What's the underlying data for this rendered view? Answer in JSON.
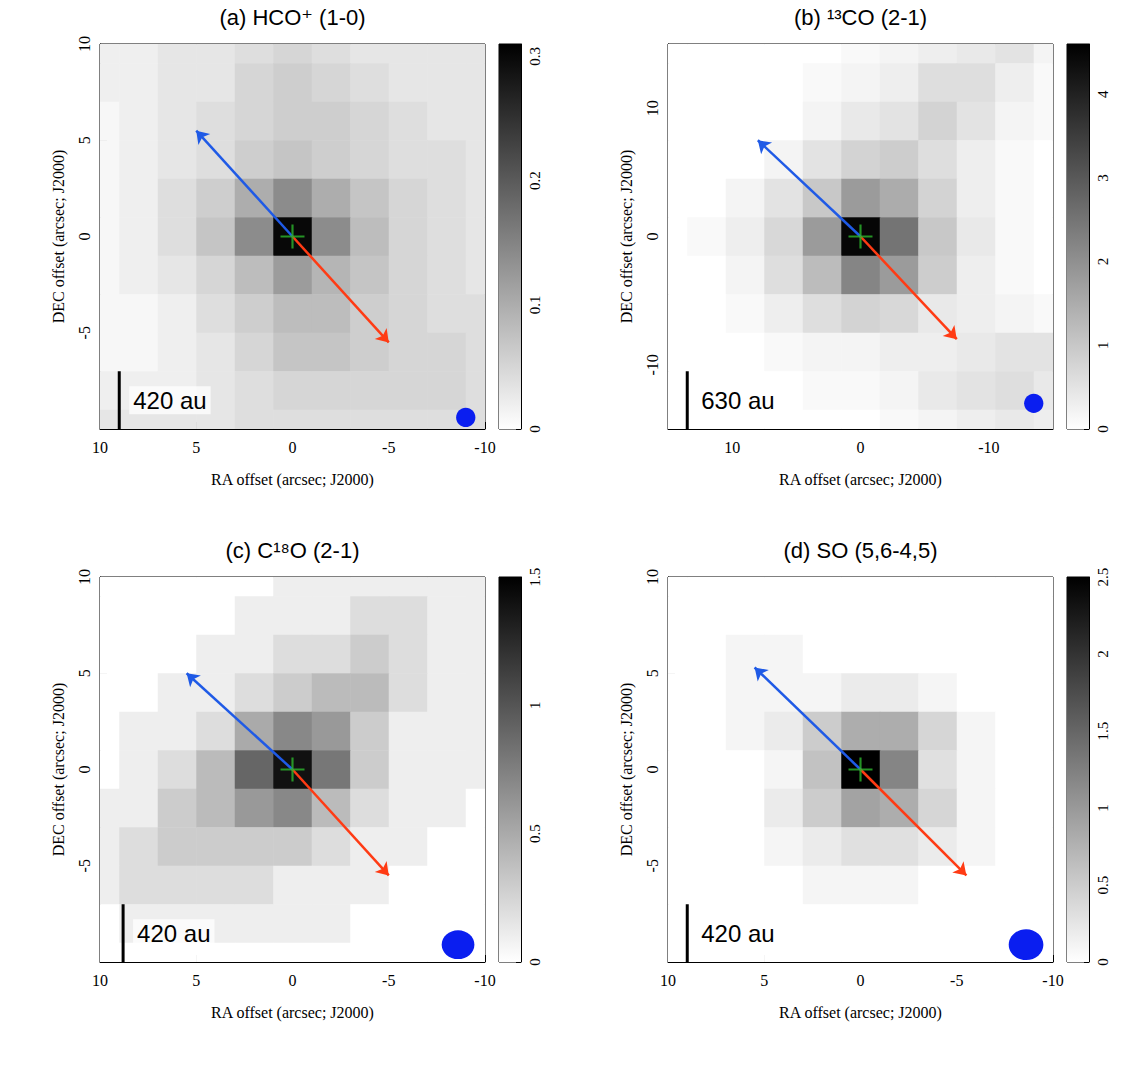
{
  "chart_data": [
    {
      "type": "heatmap",
      "title": "(a) HCO⁺ (1-0)",
      "xlabel": "RA offset (arcsec; J2000)",
      "ylabel": "DEC offset (arcsec; J2000)",
      "xlim": [
        10,
        -10
      ],
      "ylim": [
        -10,
        10
      ],
      "xticks": [
        10,
        5,
        0,
        -5,
        -10
      ],
      "yticks": [
        -5,
        0,
        5,
        10
      ],
      "x": [
        10,
        8,
        6,
        4,
        2,
        0,
        -2,
        -4,
        -6,
        -8,
        -10
      ],
      "y": [
        10,
        8,
        6,
        4,
        2,
        0,
        -2,
        -4,
        -6,
        -8,
        -10
      ],
      "cells": [
        [
          0.02,
          0.02,
          0.03,
          0.03,
          0.04,
          0.05,
          0.04,
          0.03,
          0.03,
          0.03,
          0.03
        ],
        [
          0.02,
          0.02,
          0.03,
          0.03,
          0.05,
          0.06,
          0.05,
          0.04,
          0.03,
          0.03,
          0.03
        ],
        [
          0.01,
          0.02,
          0.03,
          0.04,
          0.05,
          0.06,
          0.06,
          0.05,
          0.04,
          0.03,
          0.03
        ],
        [
          0.01,
          0.02,
          0.03,
          0.04,
          0.06,
          0.07,
          0.06,
          0.05,
          0.04,
          0.04,
          0.03
        ],
        [
          0.01,
          0.02,
          0.04,
          0.06,
          0.1,
          0.14,
          0.1,
          0.07,
          0.05,
          0.04,
          0.03
        ],
        [
          0.01,
          0.02,
          0.04,
          0.07,
          0.14,
          0.3,
          0.14,
          0.08,
          0.05,
          0.04,
          0.03
        ],
        [
          0.01,
          0.02,
          0.03,
          0.05,
          0.08,
          0.12,
          0.09,
          0.07,
          0.05,
          0.04,
          0.03
        ],
        [
          0.01,
          0.01,
          0.02,
          0.04,
          0.06,
          0.08,
          0.08,
          0.06,
          0.05,
          0.04,
          0.04
        ],
        [
          0.01,
          0.01,
          0.02,
          0.03,
          0.05,
          0.07,
          0.07,
          0.06,
          0.05,
          0.05,
          0.04
        ],
        [
          0.02,
          0.02,
          0.02,
          0.03,
          0.04,
          0.05,
          0.05,
          0.05,
          0.05,
          0.05,
          0.04
        ],
        [
          0.03,
          0.03,
          0.03,
          0.03,
          0.04,
          0.04,
          0.04,
          0.04,
          0.04,
          0.04,
          0.04
        ]
      ],
      "clim": [
        0,
        0.31
      ],
      "cticks": [
        0,
        0.1,
        0.2,
        0.3
      ],
      "arrows": [
        {
          "from": [
            0,
            0
          ],
          "to": [
            5,
            5.5
          ],
          "color": "#1f5ae6"
        },
        {
          "from": [
            0,
            0
          ],
          "to": [
            -5,
            -5.5
          ],
          "color": "#ff3b14"
        }
      ],
      "marker": "cross",
      "marker_position": [
        0,
        0
      ],
      "color": "#2db52d",
      "beam": {
        "center": [
          -9,
          -9.4
        ],
        "width": 1.0,
        "height": 1.0,
        "color": "#0a1ef0"
      },
      "scale_bar": {
        "label": "420 au",
        "length": 3,
        "anchor": [
          9,
          -10
        ]
      }
    },
    {
      "type": "heatmap",
      "title": "(b) ¹³CO (2-1)",
      "xlabel": "RA offset (arcsec; J2000)",
      "ylabel": "DEC offset (arcsec; J2000)",
      "xlim": [
        15,
        -15
      ],
      "ylim": [
        -15,
        15
      ],
      "xticks": [
        10,
        0,
        -10
      ],
      "yticks": [
        -10,
        0,
        10
      ],
      "x": [
        15,
        12,
        9,
        6,
        3,
        0,
        -3,
        -6,
        -9,
        -12,
        -15
      ],
      "y": [
        15,
        12,
        9,
        6,
        3,
        0,
        -3,
        -6,
        -9,
        -12,
        -15
      ],
      "cells": [
        [
          0,
          0,
          0,
          0,
          0,
          0.1,
          0.2,
          0.3,
          0.4,
          0.5,
          0.2
        ],
        [
          0,
          0,
          0,
          0,
          0.1,
          0.2,
          0.3,
          0.6,
          0.6,
          0.3,
          0.1
        ],
        [
          0,
          0,
          0,
          0,
          0.2,
          0.4,
          0.5,
          0.8,
          0.5,
          0.2,
          0.1
        ],
        [
          0,
          0,
          0,
          0.2,
          0.5,
          0.8,
          0.9,
          0.6,
          0.3,
          0.1,
          0
        ],
        [
          0,
          0,
          0.2,
          0.5,
          1.0,
          1.8,
          1.5,
          0.8,
          0.3,
          0.1,
          0
        ],
        [
          0,
          0.1,
          0.3,
          0.7,
          1.8,
          4.5,
          2.5,
          1.0,
          0.4,
          0.1,
          0
        ],
        [
          0,
          0,
          0.2,
          0.6,
          1.2,
          2.2,
          1.8,
          0.9,
          0.3,
          0.1,
          0
        ],
        [
          0,
          0,
          0.1,
          0.3,
          0.6,
          0.8,
          0.7,
          0.4,
          0.3,
          0.2,
          0.1
        ],
        [
          0,
          0,
          0,
          0.1,
          0.2,
          0.2,
          0.3,
          0.3,
          0.4,
          0.5,
          0.5
        ],
        [
          0,
          0,
          0,
          0,
          0.1,
          0.1,
          0.2,
          0.4,
          0.5,
          0.6,
          0.4
        ],
        [
          0,
          0,
          0,
          0,
          0,
          0,
          0.1,
          0.2,
          0.3,
          0.4,
          0.3
        ]
      ],
      "clim": [
        0,
        4.6
      ],
      "cticks": [
        0,
        1,
        2,
        3,
        4
      ],
      "arrows": [
        {
          "from": [
            0,
            0
          ],
          "to": [
            8,
            7.5
          ],
          "color": "#1f5ae6"
        },
        {
          "from": [
            0,
            0
          ],
          "to": [
            -7.5,
            -8
          ],
          "color": "#ff3b14"
        }
      ],
      "marker": "cross",
      "marker_position": [
        0,
        0
      ],
      "color": "#2db52d",
      "beam": {
        "center": [
          -13.5,
          -13
        ],
        "width": 1.5,
        "height": 1.5,
        "color": "#0a1ef0"
      },
      "scale_bar": {
        "label": "630 au",
        "length": 4.5,
        "anchor": [
          13.5,
          -15
        ]
      }
    },
    {
      "type": "heatmap",
      "title": "(c) C¹⁸O (2-1)",
      "xlabel": "RA offset (arcsec; J2000)",
      "ylabel": "DEC offset (arcsec; J2000)",
      "xlim": [
        10,
        -10
      ],
      "ylim": [
        -10,
        10
      ],
      "xticks": [
        10,
        5,
        0,
        -5,
        -10
      ],
      "yticks": [
        -5,
        0,
        5,
        10
      ],
      "x": [
        10,
        8,
        6,
        4,
        2,
        0,
        -2,
        -4,
        -6,
        -8,
        -10
      ],
      "y": [
        10,
        8,
        6,
        4,
        2,
        0,
        -2,
        -4,
        -6,
        -8,
        -10
      ],
      "cells": [
        [
          0,
          0,
          0,
          0,
          0,
          0.1,
          0.1,
          0.1,
          0.1,
          0.1,
          0.1
        ],
        [
          0,
          0,
          0,
          0,
          0.1,
          0.1,
          0.1,
          0.2,
          0.2,
          0.1,
          0.1
        ],
        [
          0,
          0,
          0,
          0.1,
          0.1,
          0.2,
          0.2,
          0.3,
          0.2,
          0.1,
          0.1
        ],
        [
          0,
          0,
          0.1,
          0.1,
          0.2,
          0.3,
          0.4,
          0.4,
          0.2,
          0.1,
          0.1
        ],
        [
          0,
          0.1,
          0.1,
          0.2,
          0.5,
          0.7,
          0.6,
          0.3,
          0.1,
          0.1,
          0.1
        ],
        [
          0,
          0.1,
          0.2,
          0.4,
          0.9,
          1.4,
          0.8,
          0.3,
          0.1,
          0.1,
          0.1
        ],
        [
          0.1,
          0.1,
          0.3,
          0.4,
          0.6,
          0.7,
          0.4,
          0.2,
          0.1,
          0.1,
          0
        ],
        [
          0.1,
          0.2,
          0.3,
          0.3,
          0.3,
          0.3,
          0.2,
          0.1,
          0.1,
          0,
          0
        ],
        [
          0.1,
          0.2,
          0.2,
          0.2,
          0.2,
          0.1,
          0.1,
          0.1,
          0,
          0,
          0
        ],
        [
          0,
          0.1,
          0.1,
          0.1,
          0.1,
          0.1,
          0.1,
          0,
          0,
          0,
          0
        ],
        [
          0,
          0,
          0,
          0,
          0,
          0,
          0,
          0,
          0,
          0,
          0
        ]
      ],
      "clim": [
        0,
        1.5
      ],
      "cticks": [
        0,
        0.5,
        1,
        1.5
      ],
      "arrows": [
        {
          "from": [
            0,
            0
          ],
          "to": [
            5.5,
            5
          ],
          "color": "#1f5ae6"
        },
        {
          "from": [
            0,
            0
          ],
          "to": [
            -5,
            -5.5
          ],
          "color": "#ff3b14"
        }
      ],
      "marker": "cross",
      "marker_position": [
        0,
        0
      ],
      "color": "#2db52d",
      "beam": {
        "center": [
          -8.6,
          -9.1
        ],
        "width": 1.7,
        "height": 1.5,
        "color": "#0a1ef0"
      },
      "scale_bar": {
        "label": "420 au",
        "length": 3,
        "anchor": [
          8.8,
          -10
        ]
      }
    },
    {
      "type": "heatmap",
      "title": "(d) SO (5,6-4,5)",
      "xlabel": "RA offset (arcsec; J2000)",
      "ylabel": "DEC offset (arcsec; J2000)",
      "xlim": [
        10,
        -10
      ],
      "ylim": [
        -10,
        10
      ],
      "xticks": [
        10,
        5,
        0,
        -5,
        -10
      ],
      "yticks": [
        -5,
        0,
        5,
        10
      ],
      "x": [
        10,
        8,
        6,
        4,
        2,
        0,
        -2,
        -4,
        -6,
        -8,
        -10
      ],
      "y": [
        10,
        8,
        6,
        4,
        2,
        0,
        -2,
        -4,
        -6,
        -8,
        -10
      ],
      "cells": [
        [
          0,
          0,
          0,
          0,
          0,
          0,
          0,
          0,
          0,
          0,
          0
        ],
        [
          0,
          0,
          0,
          0,
          0,
          0,
          0,
          0,
          0,
          0,
          0
        ],
        [
          0,
          0,
          0.1,
          0.1,
          0,
          0,
          0,
          0,
          0,
          0,
          0
        ],
        [
          0,
          0,
          0.1,
          0.1,
          0.1,
          0.2,
          0.2,
          0.1,
          0,
          0,
          0
        ],
        [
          0,
          0,
          0.1,
          0.2,
          0.5,
          0.8,
          0.8,
          0.4,
          0.1,
          0,
          0
        ],
        [
          0,
          0,
          0,
          0.1,
          0.6,
          2.5,
          1.2,
          0.3,
          0.1,
          0,
          0
        ],
        [
          0,
          0,
          0,
          0.2,
          0.5,
          0.9,
          0.8,
          0.4,
          0.1,
          0,
          0
        ],
        [
          0,
          0,
          0,
          0.1,
          0.2,
          0.3,
          0.3,
          0.2,
          0.1,
          0,
          0
        ],
        [
          0,
          0,
          0,
          0,
          0.1,
          0.1,
          0.1,
          0,
          0,
          0,
          0
        ],
        [
          0,
          0,
          0,
          0,
          0,
          0,
          0,
          0,
          0,
          0,
          0
        ],
        [
          0,
          0,
          0,
          0,
          0,
          0,
          0,
          0,
          0,
          0,
          0
        ]
      ],
      "clim": [
        0,
        2.5
      ],
      "cticks": [
        0,
        0.5,
        1,
        1.5,
        2,
        2.5
      ],
      "arrows": [
        {
          "from": [
            0,
            0
          ],
          "to": [
            5.5,
            5.3
          ],
          "color": "#1f5ae6"
        },
        {
          "from": [
            0,
            0
          ],
          "to": [
            -5.5,
            -5.5
          ],
          "color": "#ff3b14"
        }
      ],
      "marker": "cross",
      "marker_position": [
        0,
        0
      ],
      "color": "#2db52d",
      "beam": {
        "center": [
          -8.6,
          -9.1
        ],
        "width": 1.8,
        "height": 1.6,
        "color": "#0a1ef0"
      },
      "scale_bar": {
        "label": "420 au",
        "length": 3,
        "anchor": [
          9,
          -10
        ]
      }
    }
  ]
}
